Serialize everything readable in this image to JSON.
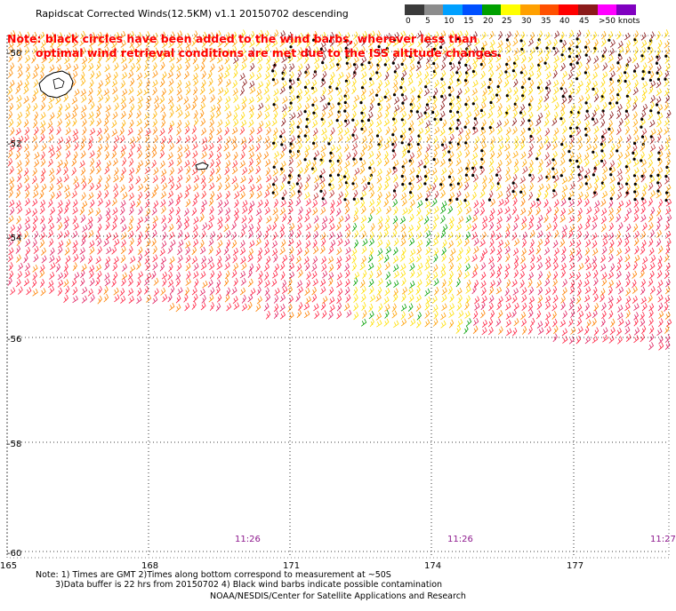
{
  "title": "Rapidscat Corrected Winds(12.5KM) v1.1 20150702 descending",
  "legend": {
    "colors": [
      "#3a3a3a",
      "#8c8c8c",
      "#00a0ff",
      "#0050ff",
      "#00a000",
      "#ffff00",
      "#ffa000",
      "#ff5000",
      "#ff0000",
      "#8b1a1a",
      "#ff00ff",
      "#8000c0"
    ],
    "labels": [
      "0",
      "5",
      "10",
      "15",
      "20",
      "25",
      "30",
      "35",
      "40",
      "45",
      ">50 knots"
    ]
  },
  "note": {
    "line1": "Note: black circles have been added to the wind barbs, wherever less than",
    "line2": "optimal wind retrieval conditions are met due to the ISS altitude changes."
  },
  "map": {
    "lat_labels": [
      "-50",
      "-52",
      "-54",
      "-56",
      "-58",
      "-60"
    ],
    "lon_labels": [
      "165",
      "168",
      "171",
      "174",
      "177"
    ],
    "time_labels": [
      "11:26",
      "11:26",
      "11:27"
    ]
  },
  "bottom_notes": {
    "line1": "Note: 1) Times are GMT 2)Times along bottom correspond to measurement at ~50S",
    "line2": "3)Data buffer is 22 hrs from 20150702 4) Black wind barbs indicate possible contamination"
  },
  "credit": "NOAA/NESDIS/Center for Satellite Applications and Research"
}
